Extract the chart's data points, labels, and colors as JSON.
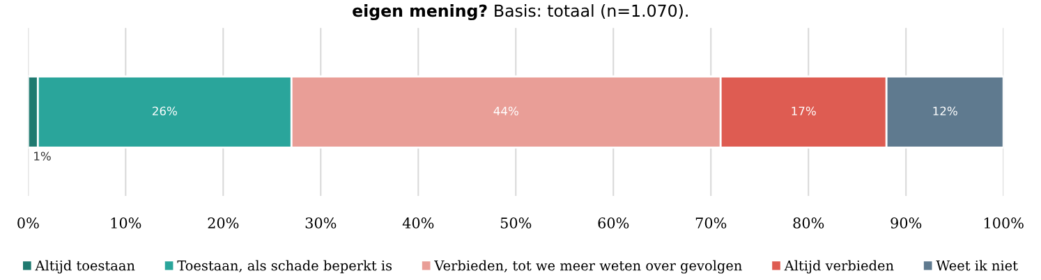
{
  "chart_data": {
    "type": "bar",
    "orientation": "horizontal",
    "stacked": true,
    "title": "eigen mening?",
    "subtitle": "Basis: totaal (n=1.070).",
    "categories": [
      null
    ],
    "series": [
      {
        "name": "Altijd toestaan",
        "color": "#1f7a70",
        "values": [
          1
        ],
        "value_labels": [
          "1%"
        ]
      },
      {
        "name": "Toestaan, als schade beperkt is",
        "color": "#2aa59b",
        "values": [
          26
        ],
        "value_labels": [
          "26%"
        ]
      },
      {
        "name": "Verbieden, tot we meer weten over gevolgen",
        "color": "#e99e97",
        "values": [
          44
        ],
        "value_labels": [
          "44%"
        ]
      },
      {
        "name": "Altijd verbieden",
        "color": "#de5c52",
        "values": [
          17
        ],
        "value_labels": [
          "17%"
        ]
      },
      {
        "name": "Weet ik niet",
        "color": "#5f7a8f",
        "values": [
          12
        ],
        "value_labels": [
          "12%"
        ]
      }
    ],
    "xlim": [
      0,
      100
    ],
    "xticks": [
      {
        "value": 0,
        "label": "0%"
      },
      {
        "value": 10,
        "label": "10%"
      },
      {
        "value": 20,
        "label": "20%"
      },
      {
        "value": 30,
        "label": "30%"
      },
      {
        "value": 40,
        "label": "40%"
      },
      {
        "value": 50,
        "label": "50%"
      },
      {
        "value": 60,
        "label": "60%"
      },
      {
        "value": 70,
        "label": "70%"
      },
      {
        "value": 80,
        "label": "80%"
      },
      {
        "value": 90,
        "label": "90%"
      },
      {
        "value": 100,
        "label": "100%"
      }
    ],
    "grid": "x",
    "legend": "bottom"
  }
}
